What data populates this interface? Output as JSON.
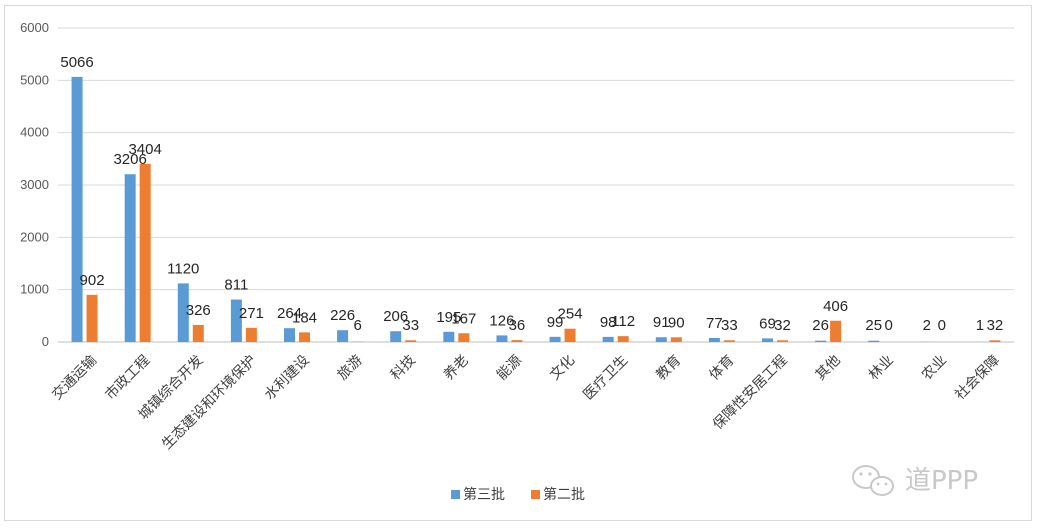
{
  "chart_data": {
    "type": "bar",
    "categories": [
      "交通运输",
      "市政工程",
      "城镇综合开发",
      "生态建设和环境保护",
      "水利建设",
      "旅游",
      "科技",
      "养老",
      "能源",
      "文化",
      "医疗卫生",
      "教育",
      "体育",
      "保障性安居工程",
      "其他",
      "林业",
      "农业",
      "社会保障"
    ],
    "series": [
      {
        "name": "第三批",
        "color": "#5b9bd5",
        "values": [
          5066,
          3206,
          1120,
          811,
          264,
          226,
          206,
          195,
          126,
          99,
          98,
          91,
          77,
          69,
          26,
          25,
          2,
          1
        ]
      },
      {
        "name": "第二批",
        "color": "#ed7d31",
        "values": [
          902,
          3404,
          326,
          271,
          184,
          6,
          33,
          167,
          36,
          254,
          112,
          90,
          33,
          32,
          406,
          0,
          0,
          32
        ]
      }
    ],
    "yticks": [
      0,
      1000,
      2000,
      3000,
      4000,
      5000,
      6000
    ],
    "ylim": [
      0,
      6000
    ],
    "grid": true,
    "legend_position": "bottom"
  },
  "watermark": "道PPP",
  "watermark_icon": "wechat-icon"
}
